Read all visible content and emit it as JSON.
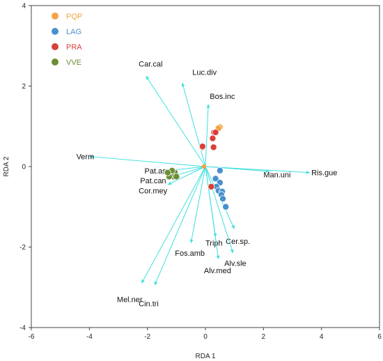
{
  "chart_data": {
    "type": "scatter",
    "title": "",
    "xlabel": "RDA 1",
    "ylabel": "RDA 2",
    "xlim": [
      -6,
      6
    ],
    "ylim": [
      -4,
      4
    ],
    "xticks": [
      -6,
      -4,
      -2,
      0,
      2,
      4,
      6
    ],
    "yticks": [
      -4,
      -2,
      0,
      2,
      4
    ],
    "grid": false,
    "legend_position": "top-left",
    "arrow_color": "#3fe0e0",
    "series": [
      {
        "name": "PQP",
        "color": "#f5a442",
        "points": [
          [
            0.5,
            0.98
          ],
          [
            0.45,
            0.95
          ]
        ]
      },
      {
        "name": "LAG",
        "color": "#4a90cc",
        "points": [
          [
            0.5,
            -0.1
          ],
          [
            0.35,
            -0.3
          ],
          [
            0.5,
            -0.4
          ],
          [
            0.38,
            -0.5
          ],
          [
            0.45,
            -0.6
          ],
          [
            0.58,
            -0.62
          ],
          [
            0.55,
            -0.7
          ],
          [
            0.6,
            -0.8
          ],
          [
            0.7,
            -1.0
          ]
        ]
      },
      {
        "name": "PRA",
        "color": "#d9403a",
        "points": [
          [
            0.3,
            0.85
          ],
          [
            0.35,
            0.85
          ],
          [
            0.25,
            0.7
          ],
          [
            0.28,
            0.48
          ],
          [
            -0.1,
            0.48
          ],
          [
            -0.1,
            0.5
          ],
          [
            0.2,
            -0.5
          ]
        ]
      },
      {
        "name": "VVE",
        "color": "#6b8e34",
        "points": [
          [
            -1.2,
            -0.2
          ],
          [
            -1.05,
            -0.15
          ],
          [
            -1.1,
            -0.25
          ],
          [
            -1.25,
            -0.25
          ],
          [
            -1.0,
            -0.25
          ],
          [
            -1.15,
            -0.1
          ],
          [
            -1.3,
            -0.15
          ]
        ]
      }
    ],
    "center_point": {
      "x": -0.05,
      "y": 0.0,
      "color": "#f5a442"
    },
    "arrows": [
      {
        "label": "Car.cal",
        "x": -2.05,
        "y": 2.25,
        "lx": -2.3,
        "ly": 2.55
      },
      {
        "label": "Luc.div",
        "x": -0.8,
        "y": 2.08,
        "lx": -0.45,
        "ly": 2.35
      },
      {
        "label": "Bos.inc",
        "x": 0.1,
        "y": 1.55,
        "lx": 0.15,
        "ly": 1.75
      },
      {
        "label": "Verm",
        "x": -4.0,
        "y": 0.25,
        "lx": -4.45,
        "ly": 0.25
      },
      {
        "label": "Pat.asp",
        "x": -1.3,
        "y": -0.1,
        "lx": -2.1,
        "ly": -0.1
      },
      {
        "label": "Pat.can",
        "x": -1.3,
        "y": -0.28,
        "lx": -2.25,
        "ly": -0.35
      },
      {
        "label": "Cor.mey",
        "x": -1.3,
        "y": -0.45,
        "lx": -2.3,
        "ly": -0.6
      },
      {
        "label": "Man.uni",
        "x": 2.2,
        "y": -0.12,
        "lx": 2.0,
        "ly": -0.2
      },
      {
        "label": "Ris.gue",
        "x": 3.6,
        "y": -0.15,
        "lx": 3.65,
        "ly": -0.15
      },
      {
        "label": "Triph",
        "x": 0.35,
        "y": -1.75,
        "lx": 0.0,
        "ly": -1.9
      },
      {
        "label": "Cer.sp.",
        "x": 1.0,
        "y": -1.55,
        "lx": 0.7,
        "ly": -1.85
      },
      {
        "label": "Fos.amb",
        "x": -0.5,
        "y": -1.9,
        "lx": -1.05,
        "ly": -2.15
      },
      {
        "label": "Alv.sle",
        "x": 0.95,
        "y": -2.15,
        "lx": 0.65,
        "ly": -2.4
      },
      {
        "label": "Alv.med",
        "x": 0.45,
        "y": -2.3,
        "lx": -0.05,
        "ly": -2.58
      },
      {
        "label": "Mel.ner",
        "x": -2.2,
        "y": -2.9,
        "lx": -3.05,
        "ly": -3.3
      },
      {
        "label": "Cin.tri",
        "x": -1.75,
        "y": -2.95,
        "lx": -2.3,
        "ly": -3.4
      }
    ]
  }
}
